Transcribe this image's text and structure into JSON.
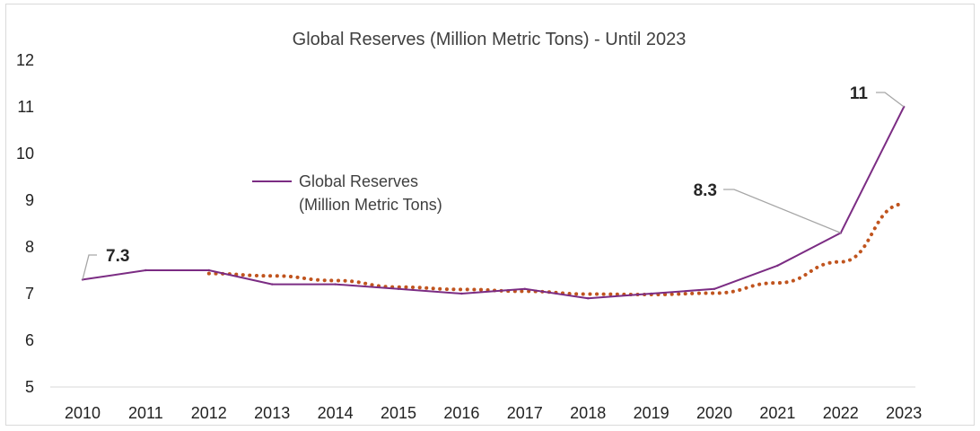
{
  "chart_data": {
    "type": "line",
    "title": "Global Reserves (Million Metric Tons) - Until 2023",
    "xlabel": "",
    "ylabel": "",
    "categories": [
      "2010",
      "2011",
      "2012",
      "2013",
      "2014",
      "2015",
      "2016",
      "2017",
      "2018",
      "2019",
      "2020",
      "2021",
      "2022",
      "2023"
    ],
    "ylim": [
      5,
      12
    ],
    "yticks": [
      "5",
      "6",
      "7",
      "8",
      "9",
      "10",
      "11",
      "12"
    ],
    "grid": false,
    "legend": {
      "position": "center-left",
      "lines": [
        "Global Reserves",
        "(Million Metric Tons)"
      ]
    },
    "series": [
      {
        "name": "Global Reserves (Million Metric Tons)",
        "color": "#7B2C83",
        "values": [
          7.3,
          7.5,
          7.5,
          7.2,
          7.2,
          7.1,
          7.0,
          7.1,
          6.9,
          7.0,
          7.1,
          7.6,
          8.3,
          11.0
        ]
      }
    ],
    "trendline": {
      "style": "dotted",
      "color": "#C0541E",
      "values": [
        null,
        null,
        7.43,
        7.38,
        7.28,
        7.14,
        7.09,
        7.05,
        6.99,
        6.98,
        7.01,
        7.23,
        7.68,
        8.92
      ]
    },
    "data_labels": [
      {
        "text": "7.3",
        "index": 0
      },
      {
        "text": "8.3",
        "index": 12
      },
      {
        "text": "11",
        "index": 13
      }
    ]
  }
}
